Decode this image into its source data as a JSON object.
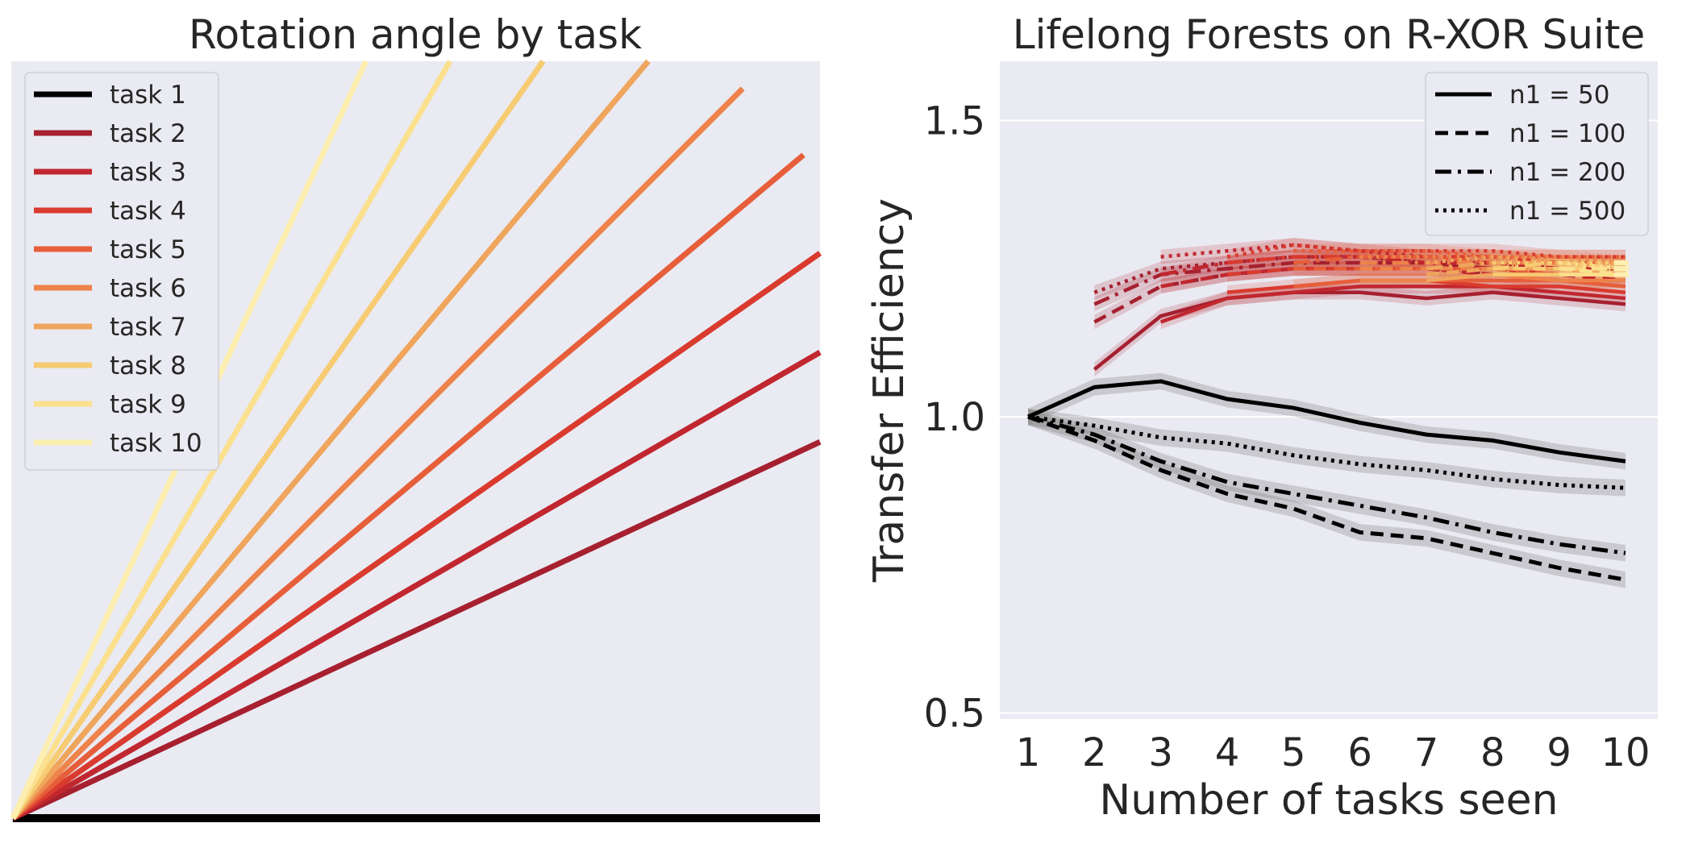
{
  "chart_data": [
    {
      "type": "line",
      "title": "Rotation angle by task",
      "xlabel": "",
      "ylabel": "",
      "grid": false,
      "legend_position": "top-left",
      "series": [
        {
          "name": "task 1",
          "color": "#000000",
          "angle_deg": 0
        },
        {
          "name": "task 2",
          "color": "#a6202f",
          "angle_deg": 25
        },
        {
          "name": "task 3",
          "color": "#c1272f",
          "angle_deg": 30
        },
        {
          "name": "task 4",
          "color": "#d93b2f",
          "angle_deg": 35
        },
        {
          "name": "task 5",
          "color": "#e65e3a",
          "angle_deg": 40
        },
        {
          "name": "task 6",
          "color": "#ee834b",
          "angle_deg": 45
        },
        {
          "name": "task 7",
          "color": "#efa55c",
          "angle_deg": 50
        },
        {
          "name": "task 8",
          "color": "#f7cb72",
          "angle_deg": 55
        },
        {
          "name": "task 9",
          "color": "#fbe08e",
          "angle_deg": 60
        },
        {
          "name": "task 10",
          "color": "#fdefb0",
          "angle_deg": 65
        }
      ]
    },
    {
      "type": "line",
      "title": "Lifelong Forests on R-XOR Suite",
      "xlabel": "Number of tasks seen",
      "ylabel": "Transfer Efficiency",
      "x": [
        1,
        2,
        3,
        4,
        5,
        6,
        7,
        8,
        9,
        10
      ],
      "xticks": [
        "1",
        "2",
        "3",
        "4",
        "5",
        "6",
        "7",
        "8",
        "9",
        "10"
      ],
      "yticks": [
        "0.5",
        "1.0",
        "1.5"
      ],
      "ylim": [
        0.49,
        1.6
      ],
      "grid": true,
      "legend_position": "top-right",
      "legend": [
        {
          "name": "n1 = 50",
          "dash": "solid"
        },
        {
          "name": "n1 = 100",
          "dash": "dashed"
        },
        {
          "name": "n1 = 200",
          "dash": "dashdot"
        },
        {
          "name": "n1 = 500",
          "dash": "dotted"
        }
      ],
      "series": [
        {
          "name": "n1 = 50",
          "dash": "solid",
          "color": "#000000",
          "values": [
            1.0,
            1.05,
            1.06,
            1.03,
            1.015,
            0.99,
            0.97,
            0.96,
            0.94,
            0.925
          ]
        },
        {
          "name": "n1 = 100",
          "dash": "dashed",
          "color": "#000000",
          "values": [
            1.0,
            0.96,
            0.91,
            0.87,
            0.845,
            0.805,
            0.795,
            0.77,
            0.745,
            0.725
          ]
        },
        {
          "name": "n1 = 200",
          "dash": "dashdot",
          "color": "#000000",
          "values": [
            1.0,
            0.97,
            0.925,
            0.89,
            0.87,
            0.85,
            0.83,
            0.805,
            0.785,
            0.77
          ]
        },
        {
          "name": "n1 = 500",
          "dash": "dotted",
          "color": "#000000",
          "values": [
            1.0,
            0.985,
            0.965,
            0.955,
            0.935,
            0.92,
            0.91,
            0.895,
            0.885,
            0.88
          ]
        }
      ],
      "task_series": [
        {
          "task": 2,
          "color": "#a6202f",
          "start": 2,
          "n50": [
            1.08,
            1.17,
            1.2,
            1.21,
            1.21,
            1.2,
            1.21,
            1.2,
            1.19
          ],
          "n100": [
            1.16,
            1.22,
            1.24,
            1.25,
            1.25,
            1.25,
            1.24,
            1.23,
            1.23
          ],
          "n200": [
            1.19,
            1.24,
            1.25,
            1.26,
            1.26,
            1.26,
            1.25,
            1.25,
            1.24
          ],
          "n500": [
            1.21,
            1.25,
            1.26,
            1.27,
            1.27,
            1.26,
            1.26,
            1.25,
            1.25
          ]
        },
        {
          "task": 3,
          "color": "#c1272f",
          "start": 3,
          "n50": [
            1.16,
            1.2,
            1.21,
            1.22,
            1.22,
            1.22,
            1.21,
            1.2
          ],
          "n100": [
            1.22,
            1.24,
            1.25,
            1.25,
            1.25,
            1.24,
            1.24,
            1.23
          ],
          "n200": [
            1.24,
            1.26,
            1.27,
            1.27,
            1.26,
            1.26,
            1.25,
            1.25
          ],
          "n500": [
            1.27,
            1.28,
            1.29,
            1.28,
            1.27,
            1.27,
            1.26,
            1.26
          ]
        },
        {
          "task": 4,
          "color": "#d93b2f",
          "start": 4,
          "n50": [
            1.21,
            1.22,
            1.23,
            1.23,
            1.22,
            1.22,
            1.21
          ],
          "n100": [
            1.24,
            1.25,
            1.25,
            1.25,
            1.25,
            1.24,
            1.24
          ],
          "n200": [
            1.26,
            1.27,
            1.27,
            1.27,
            1.27,
            1.26,
            1.26
          ],
          "n500": [
            1.27,
            1.29,
            1.28,
            1.28,
            1.28,
            1.27,
            1.27
          ]
        },
        {
          "task": 5,
          "color": "#e65e3a",
          "start": 5,
          "n50": [
            1.22,
            1.23,
            1.23,
            1.23,
            1.23,
            1.22
          ],
          "n100": [
            1.25,
            1.25,
            1.25,
            1.25,
            1.24,
            1.24
          ],
          "n200": [
            1.26,
            1.27,
            1.27,
            1.26,
            1.26,
            1.26
          ],
          "n500": [
            1.28,
            1.28,
            1.28,
            1.27,
            1.27,
            1.27
          ]
        },
        {
          "task": 6,
          "color": "#ee834b",
          "start": 6,
          "n50": [
            1.23,
            1.23,
            1.24,
            1.23,
            1.23
          ],
          "n100": [
            1.25,
            1.25,
            1.25,
            1.25,
            1.24
          ],
          "n200": [
            1.26,
            1.26,
            1.26,
            1.26,
            1.25
          ],
          "n500": [
            1.27,
            1.27,
            1.27,
            1.27,
            1.26
          ]
        },
        {
          "task": 7,
          "color": "#efa55c",
          "start": 7,
          "n50": [
            1.23,
            1.24,
            1.24,
            1.24
          ],
          "n100": [
            1.24,
            1.25,
            1.25,
            1.24
          ],
          "n200": [
            1.25,
            1.26,
            1.26,
            1.25
          ],
          "n500": [
            1.26,
            1.27,
            1.26,
            1.26
          ]
        },
        {
          "task": 8,
          "color": "#f7cb72",
          "start": 8,
          "n50": [
            1.24,
            1.24,
            1.24
          ],
          "n100": [
            1.25,
            1.25,
            1.25
          ],
          "n200": [
            1.25,
            1.26,
            1.25
          ],
          "n500": [
            1.26,
            1.26,
            1.26
          ]
        },
        {
          "task": 9,
          "color": "#fbe08e",
          "start": 9,
          "n50": [
            1.24,
            1.24
          ],
          "n100": [
            1.25,
            1.24
          ],
          "n200": [
            1.25,
            1.25
          ],
          "n500": [
            1.26,
            1.25
          ]
        },
        {
          "task": 10,
          "color": "#fdefb0",
          "start": 10,
          "n50": [
            1.24
          ],
          "n100": [
            1.25
          ],
          "n200": [
            1.25
          ],
          "n500": [
            1.26
          ]
        }
      ]
    }
  ]
}
